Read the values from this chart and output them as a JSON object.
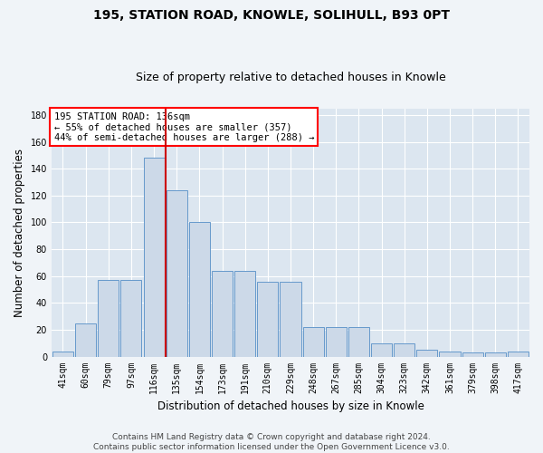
{
  "title1": "195, STATION ROAD, KNOWLE, SOLIHULL, B93 0PT",
  "title2": "Size of property relative to detached houses in Knowle",
  "xlabel": "Distribution of detached houses by size in Knowle",
  "ylabel": "Number of detached properties",
  "categories": [
    "41sqm",
    "60sqm",
    "79sqm",
    "97sqm",
    "116sqm",
    "135sqm",
    "154sqm",
    "173sqm",
    "191sqm",
    "210sqm",
    "229sqm",
    "248sqm",
    "267sqm",
    "285sqm",
    "304sqm",
    "323sqm",
    "342sqm",
    "361sqm",
    "379sqm",
    "398sqm",
    "417sqm"
  ],
  "bar_values": [
    4,
    25,
    57,
    57,
    148,
    124,
    100,
    64,
    64,
    56,
    56,
    22,
    22,
    22,
    10,
    10,
    5,
    4,
    3,
    3,
    4
  ],
  "bar_color": "#ccd9e8",
  "bar_edge_color": "#6699cc",
  "bg_color": "#dce6f0",
  "grid_color": "#ffffff",
  "annotation_text_line1": "195 STATION ROAD: 136sqm",
  "annotation_text_line2": "← 55% of detached houses are smaller (357)",
  "annotation_text_line3": "44% of semi-detached houses are larger (288) →",
  "red_line_x": 4.5,
  "footer1": "Contains HM Land Registry data © Crown copyright and database right 2024.",
  "footer2": "Contains public sector information licensed under the Open Government Licence v3.0.",
  "fig_bg": "#f0f4f8",
  "title1_fontsize": 10,
  "title2_fontsize": 9,
  "ylabel_fontsize": 8.5,
  "xlabel_fontsize": 8.5,
  "tick_fontsize": 7,
  "footer_fontsize": 6.5,
  "ann_fontsize": 7.5,
  "ylim": [
    0,
    185
  ],
  "yticks": [
    0,
    20,
    40,
    60,
    80,
    100,
    120,
    140,
    160,
    180
  ]
}
